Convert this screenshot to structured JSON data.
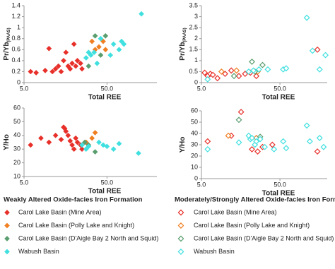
{
  "chart_data": [
    {
      "type": "scatter",
      "x_label": "Total REE",
      "y_label": "Pr/Yb",
      "y_label_sub": "(PAAS)",
      "xscale": "log",
      "marker_fill": "filled",
      "xlim": [
        5,
        200
      ],
      "xticks": [
        {
          "value": 5,
          "label": "5.0"
        },
        {
          "value": 50,
          "label": "50.0"
        }
      ],
      "ylim": [
        0,
        1.4
      ],
      "yticks": [
        0,
        0.2,
        0.4,
        0.6,
        0.8,
        1,
        1.2,
        1.4
      ],
      "series": [
        {
          "color": "#e8302a",
          "x": [
            6,
            7,
            9,
            10,
            11,
            12,
            13,
            14,
            15,
            16,
            17,
            18,
            19,
            20,
            21,
            22,
            24,
            25
          ],
          "values": [
            0.2,
            0.18,
            0.22,
            0.62,
            0.2,
            0.25,
            0.3,
            0.2,
            0.4,
            0.55,
            0.3,
            0.25,
            0.35,
            0.7,
            0.3,
            0.4,
            0.35,
            0.25
          ]
        },
        {
          "color": "#f07f22",
          "x": [
            33,
            36,
            40,
            45,
            48
          ],
          "values": [
            0.75,
            0.6,
            0.65,
            0.75,
            0.6
          ]
        },
        {
          "color": "#5a9e6f",
          "x": [
            36,
            48,
            42,
            30
          ],
          "values": [
            0.85,
            0.85,
            0.5,
            0.3
          ]
        },
        {
          "color": "#41e0e0",
          "x": [
            30,
            32,
            35,
            42,
            55,
            60,
            70,
            80,
            75,
            130,
            38,
            28
          ],
          "values": [
            0.55,
            0.5,
            0.55,
            0.8,
            0.5,
            0.7,
            0.6,
            0.7,
            0.75,
            1.25,
            0.35,
            0.45
          ]
        }
      ]
    },
    {
      "type": "scatter",
      "x_label": "Total REE",
      "y_label": "Pr/Yb",
      "y_label_sub": "(PAAS)",
      "xscale": "log",
      "marker_fill": "open",
      "xlim": [
        5,
        200
      ],
      "xticks": [
        {
          "value": 5,
          "label": "5.0"
        },
        {
          "value": 50,
          "label": "50.0"
        }
      ],
      "ylim": [
        0,
        3.5
      ],
      "yticks": [
        0,
        0.5,
        1,
        1.5,
        2,
        2.5,
        3,
        3.5
      ],
      "series": [
        {
          "color": "#e8302a",
          "x": [
            5.5,
            6,
            6.5,
            7,
            8,
            10,
            12,
            15,
            18,
            21,
            25,
            150
          ],
          "values": [
            0.45,
            0.3,
            0.4,
            0.35,
            0.2,
            0.4,
            0.55,
            0.3,
            0.4,
            0.45,
            0.3,
            1.5
          ]
        },
        {
          "color": "#f07f22",
          "x": [
            9,
            14,
            26
          ],
          "values": [
            0.5,
            0.55,
            0.5
          ]
        },
        {
          "color": "#5a9e6f",
          "x": [
            13,
            22,
            24,
            30
          ],
          "values": [
            0.3,
            0.95,
            0.5,
            0.8
          ]
        },
        {
          "color": "#41e0e0",
          "x": [
            6,
            20,
            23,
            27,
            35,
            55,
            60,
            110,
            130,
            160,
            190
          ],
          "values": [
            0.15,
            0.5,
            0.55,
            0.6,
            0.6,
            0.6,
            0.65,
            2.95,
            1.45,
            0.6,
            1.25
          ]
        }
      ]
    },
    {
      "type": "scatter",
      "x_label": "Total REE",
      "y_label": "Y/Ho",
      "xscale": "log",
      "marker_fill": "filled",
      "legend_title": "Weakly Altered Oxide-facies Iron Formation",
      "xlim": [
        5,
        200
      ],
      "xticks": [
        {
          "value": 5,
          "label": "5.0"
        },
        {
          "value": 50,
          "label": "50.0"
        }
      ],
      "ylim": [
        10,
        60
      ],
      "yticks": [
        10,
        20,
        30,
        40,
        50,
        60
      ],
      "series": [
        {
          "name": "Carol Lake Basin (Mine Area)",
          "color": "#e8302a",
          "x": [
            6,
            8,
            10,
            12,
            14,
            15,
            15.5,
            16,
            17,
            18,
            19,
            20,
            21,
            22,
            24,
            25
          ],
          "values": [
            33,
            38,
            35,
            40,
            37,
            46,
            45,
            43,
            40,
            36,
            33,
            30,
            38,
            35,
            33,
            30
          ]
        },
        {
          "name": "Carol Lake Basin (Polly Lake and Knight)",
          "color": "#f07f22",
          "x": [
            28,
            33,
            36
          ],
          "values": [
            35,
            38,
            42
          ]
        },
        {
          "name": "Carol Lake Basin (D'Aigle Bay 2 North and Squid)",
          "color": "#5a9e6f",
          "x": [
            27,
            30,
            36
          ],
          "values": [
            35,
            33,
            28
          ]
        },
        {
          "name": "Wabush Basin",
          "color": "#41e0e0",
          "x": [
            25,
            28,
            30,
            40,
            45,
            50,
            60,
            70,
            120
          ],
          "values": [
            33,
            30,
            32,
            35,
            33,
            32,
            30,
            34,
            27
          ]
        }
      ]
    },
    {
      "type": "scatter",
      "x_label": "Total REE",
      "y_label": "Y/Ho",
      "xscale": "log",
      "marker_fill": "open",
      "legend_title": "Moderately/Strongly Altered Oxide-facies Iron Formation",
      "xlim": [
        5,
        200
      ],
      "xticks": [
        {
          "value": 5,
          "label": "5.0"
        },
        {
          "value": 50,
          "label": "50.0"
        }
      ],
      "ylim": [
        0,
        60
      ],
      "yticks": [
        0,
        10,
        20,
        30,
        40,
        50,
        60
      ],
      "series": [
        {
          "name": "Carol Lake Basin (Mine Area)",
          "color": "#e8302a",
          "x": [
            6,
            12,
            16,
            22,
            26,
            30,
            40,
            150
          ],
          "values": [
            33,
            38,
            59,
            26,
            24,
            28,
            30,
            24
          ]
        },
        {
          "name": "Carol Lake Basin (Polly Lake and Knight)",
          "color": "#f07f22",
          "x": [
            11,
            25
          ],
          "values": [
            38,
            36
          ]
        },
        {
          "name": "Carol Lake Basin (D'Aigle Bay 2 North and Squid)",
          "color": "#5a9e6f",
          "x": [
            15,
            28
          ],
          "values": [
            52,
            37
          ]
        },
        {
          "name": "Wabush Basin",
          "color": "#41e0e0",
          "x": [
            6,
            15,
            20,
            21,
            22,
            24,
            25,
            28,
            32,
            42,
            55,
            60,
            110,
            120,
            160,
            180
          ],
          "values": [
            26,
            32,
            38,
            35,
            36,
            30,
            33,
            35,
            28,
            26,
            33,
            27,
            47,
            33,
            36,
            28
          ]
        }
      ]
    }
  ]
}
